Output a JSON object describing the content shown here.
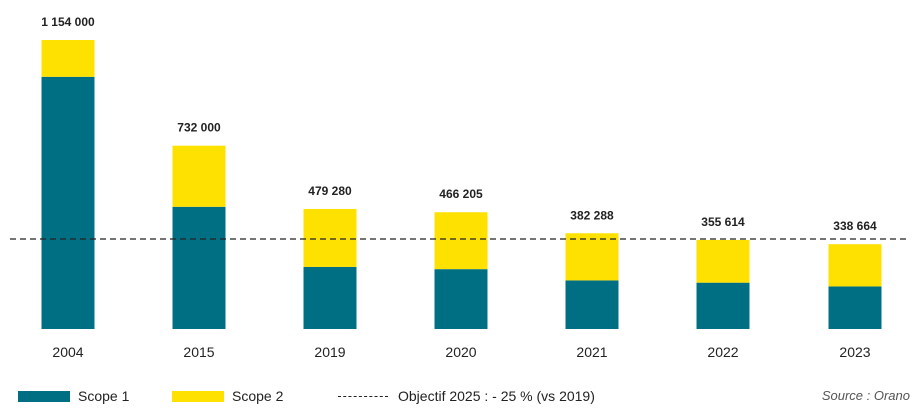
{
  "chart_data": {
    "type": "bar",
    "stacked": true,
    "categories": [
      "2004",
      "2015",
      "2019",
      "2020",
      "2021",
      "2022",
      "2023"
    ],
    "series": [
      {
        "name": "Scope 1",
        "color": "#006f84",
        "values": [
          1007000,
          488000,
          248000,
          239000,
          194000,
          185000,
          170000
        ]
      },
      {
        "name": "Scope 2",
        "color": "#ffe100",
        "values": [
          147000,
          244000,
          231280,
          227205,
          188288,
          170614,
          168664
        ]
      }
    ],
    "totals": [
      "1 154 000",
      "732 000",
      "479 280",
      "466 205",
      "382 288",
      "355 614",
      "338 664"
    ],
    "total_values": [
      1154000,
      732000,
      479280,
      466205,
      382288,
      355614,
      338664
    ],
    "reference_line": {
      "label": "Objectif 2025 : - 25 % (vs 2019)",
      "value": 359460,
      "style": "dashed"
    },
    "ylim": [
      0,
      1154000
    ],
    "grid": false,
    "legend_position": "bottom",
    "source": "Source : Orano"
  }
}
